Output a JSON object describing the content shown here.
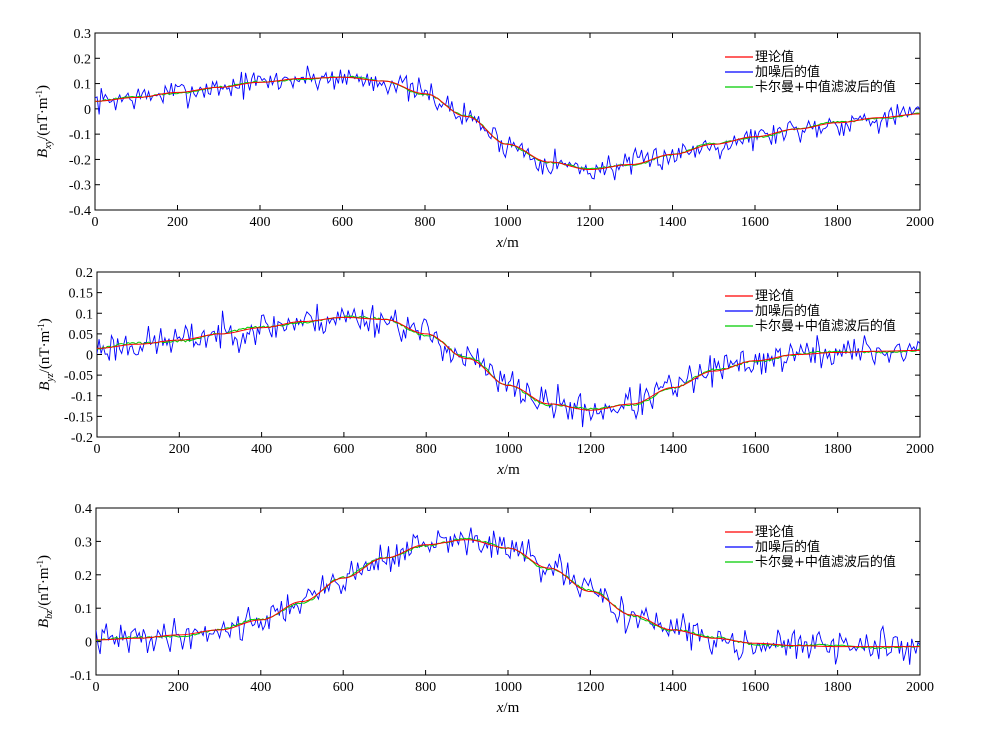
{
  "colors": {
    "theory": "#ff0000",
    "noisy": "#0000ff",
    "filtered": "#00cc00",
    "axes": "#000000",
    "background": "#ffffff"
  },
  "chart_data": [
    {
      "type": "line",
      "title": "",
      "xlabel": {
        "italic": "x",
        "rest": "/m"
      },
      "ylabel": {
        "main": "B",
        "sub": "xy",
        "rest": "/(nT·m",
        "sup": "-1",
        "close": ")"
      },
      "xlim": [
        0,
        2000
      ],
      "ylim": [
        -0.4,
        0.3
      ],
      "xticks": [
        0,
        200,
        400,
        600,
        800,
        1000,
        1200,
        1400,
        1600,
        1800,
        2000
      ],
      "yticks": [
        "0.3",
        "0.2",
        "0.1",
        "0",
        "-0.1",
        "-0.2",
        "-0.3",
        "-0.4"
      ],
      "ytick_values": [
        0.3,
        0.2,
        0.1,
        0,
        -0.1,
        -0.2,
        -0.3,
        -0.4
      ],
      "legend_position": "top-right",
      "series": [
        {
          "name": "理论值",
          "color_key": "theory",
          "x": [
            0,
            100,
            200,
            300,
            400,
            500,
            600,
            700,
            800,
            900,
            1000,
            1100,
            1200,
            1300,
            1400,
            1500,
            1600,
            1700,
            1800,
            1900,
            2000
          ],
          "y": [
            0.03,
            0.045,
            0.065,
            0.085,
            0.105,
            0.12,
            0.125,
            0.11,
            0.06,
            -0.03,
            -0.14,
            -0.21,
            -0.24,
            -0.22,
            -0.18,
            -0.14,
            -0.11,
            -0.08,
            -0.055,
            -0.035,
            -0.02
          ]
        },
        {
          "name": "加噪后的值",
          "color_key": "noisy",
          "noise_amplitude": 0.045,
          "seed": 7
        },
        {
          "name": "卡尔曼+中值滤波后的值",
          "color_key": "filtered",
          "filter_amplitude": 0.006,
          "seed": 11
        }
      ]
    },
    {
      "type": "line",
      "title": "",
      "xlabel": {
        "italic": "x",
        "rest": "/m"
      },
      "ylabel": {
        "main": "B",
        "sub": "yz",
        "rest": "/(nT·m",
        "sup": "-1",
        "close": ")"
      },
      "xlim": [
        0,
        2000
      ],
      "ylim": [
        -0.2,
        0.2
      ],
      "xticks": [
        0,
        200,
        400,
        600,
        800,
        1000,
        1200,
        1400,
        1600,
        1800,
        2000
      ],
      "yticks": [
        "0.2",
        "0.15",
        "0.1",
        "0.05",
        "0",
        "-0.05",
        "-0.1",
        "-0.15",
        "-0.2"
      ],
      "ytick_values": [
        0.2,
        0.15,
        0.1,
        0.05,
        0,
        -0.05,
        -0.1,
        -0.15,
        -0.2
      ],
      "legend_position": "top-right",
      "series": [
        {
          "name": "理论值",
          "color_key": "theory",
          "x": [
            0,
            100,
            200,
            300,
            400,
            500,
            600,
            700,
            800,
            900,
            1000,
            1100,
            1200,
            1300,
            1400,
            1500,
            1600,
            1700,
            1800,
            1900,
            2000
          ],
          "y": [
            0.015,
            0.025,
            0.035,
            0.05,
            0.065,
            0.08,
            0.09,
            0.085,
            0.05,
            -0.01,
            -0.075,
            -0.12,
            -0.135,
            -0.12,
            -0.08,
            -0.04,
            -0.015,
            0.0,
            0.005,
            0.008,
            0.01
          ]
        },
        {
          "name": "加噪后的值",
          "color_key": "noisy",
          "noise_amplitude": 0.035,
          "seed": 23
        },
        {
          "name": "卡尔曼+中值滤波后的值",
          "color_key": "filtered",
          "filter_amplitude": 0.005,
          "seed": 31
        }
      ]
    },
    {
      "type": "line",
      "title": "",
      "xlabel": {
        "italic": "x",
        "rest": "/m"
      },
      "ylabel": {
        "main": "B",
        "sub": "bz",
        "rest": "/(nT·m",
        "sup": "-1",
        "close": ")"
      },
      "xlim": [
        0,
        2000
      ],
      "ylim": [
        -0.1,
        0.4
      ],
      "xticks": [
        0,
        200,
        400,
        600,
        800,
        1000,
        1200,
        1400,
        1600,
        1800,
        2000
      ],
      "yticks": [
        "0.4",
        "0.3",
        "0.2",
        "0.1",
        "0",
        "-0.1"
      ],
      "ytick_values": [
        0.4,
        0.3,
        0.2,
        0.1,
        0,
        -0.1
      ],
      "legend_position": "top-right",
      "series": [
        {
          "name": "理论值",
          "color_key": "theory",
          "x": [
            0,
            100,
            200,
            300,
            400,
            500,
            600,
            700,
            800,
            900,
            1000,
            1100,
            1200,
            1300,
            1400,
            1500,
            1600,
            1700,
            1800,
            1900,
            2000
          ],
          "y": [
            0.005,
            0.01,
            0.02,
            0.035,
            0.065,
            0.12,
            0.19,
            0.25,
            0.29,
            0.305,
            0.28,
            0.22,
            0.15,
            0.08,
            0.035,
            0.01,
            -0.005,
            -0.012,
            -0.015,
            -0.015,
            -0.015
          ]
        },
        {
          "name": "加噪后的值",
          "color_key": "noisy",
          "noise_amplitude": 0.04,
          "seed": 41
        },
        {
          "name": "卡尔曼+中值滤波后的值",
          "color_key": "filtered",
          "filter_amplitude": 0.006,
          "seed": 53
        }
      ]
    }
  ]
}
